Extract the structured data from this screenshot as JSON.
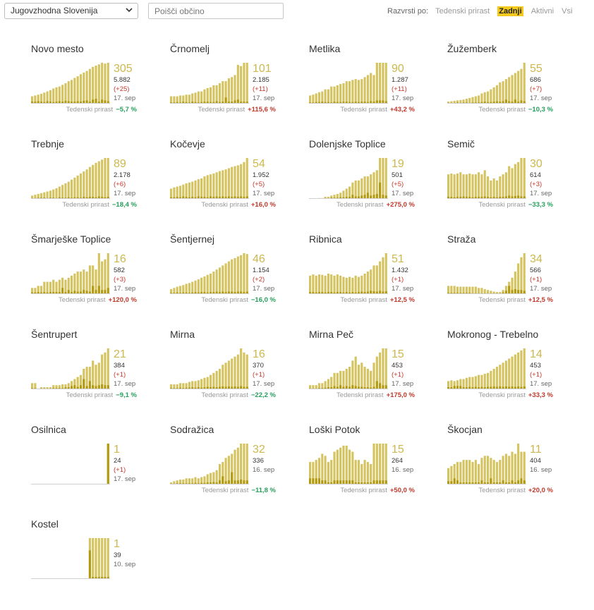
{
  "header": {
    "region": "Jugovzhodna Slovenija",
    "search_placeholder": "Poišči občino",
    "sort_label": "Razvrsti po:",
    "sort_options": [
      "Tedenski prirast",
      "Zadnji",
      "Aktivni",
      "Vsi"
    ],
    "sort_active": "Zadnji"
  },
  "colors": {
    "bar_light": "#d4c35f",
    "bar_dark": "#b39a0c",
    "up": "#c0392b",
    "down": "#27a05c"
  },
  "growth_label": "Tedenski prirast",
  "municipalities": [
    {
      "name": "Novo mesto",
      "value": "305",
      "total": "5.882",
      "delta": "(+25)",
      "date": "17. sep",
      "growth": "−5,7 %",
      "trend": "down",
      "bars": [
        0.18,
        0.2,
        0.22,
        0.24,
        0.27,
        0.3,
        0.33,
        0.37,
        0.4,
        0.42,
        0.46,
        0.5,
        0.55,
        0.58,
        0.63,
        0.67,
        0.72,
        0.76,
        0.8,
        0.85,
        0.9,
        0.93,
        0.96,
        1.0,
        0.98,
        1.0
      ],
      "dark": [
        0.05,
        0.05,
        0.06,
        0.05,
        0.04,
        0.06,
        0.05,
        0.04,
        0.05,
        0.06,
        0.05,
        0.07,
        0.06,
        0.05,
        0.05,
        0.06,
        0.05,
        0.07,
        0.08,
        0.05,
        0.1,
        0.12,
        0.05,
        0.1,
        0.08,
        0.06
      ]
    },
    {
      "name": "Črnomelj",
      "value": "101",
      "total": "2.185",
      "delta": "(+11)",
      "date": "17. sep",
      "growth": "+115,6 %",
      "trend": "up",
      "bars": [
        0.18,
        0.18,
        0.18,
        0.2,
        0.2,
        0.22,
        0.22,
        0.25,
        0.27,
        0.3,
        0.3,
        0.35,
        0.38,
        0.4,
        0.45,
        0.45,
        0.5,
        0.55,
        0.55,
        0.62,
        0.65,
        0.7,
        0.95,
        0.92,
        1.0,
        1.0
      ],
      "dark": [
        0.03,
        0.03,
        0.04,
        0.03,
        0.05,
        0.04,
        0.03,
        0.05,
        0.04,
        0.03,
        0.04,
        0.05,
        0.05,
        0.04,
        0.04,
        0.06,
        0.04,
        0.05,
        0.15,
        0.05,
        0.05,
        0.08,
        0.1,
        0.05,
        0.05,
        0.05
      ]
    },
    {
      "name": "Metlika",
      "value": "90",
      "total": "1.287",
      "delta": "(+11)",
      "date": "17. sep",
      "growth": "+43,2 %",
      "trend": "up",
      "bars": [
        0.2,
        0.22,
        0.25,
        0.28,
        0.3,
        0.35,
        0.35,
        0.42,
        0.42,
        0.45,
        0.48,
        0.5,
        0.55,
        0.55,
        0.58,
        0.6,
        0.58,
        0.6,
        0.65,
        0.7,
        0.75,
        0.7,
        1.0,
        1.0,
        1.0,
        1.0
      ],
      "dark": [
        0.03,
        0.03,
        0.04,
        0.04,
        0.05,
        0.04,
        0.04,
        0.03,
        0.05,
        0.04,
        0.04,
        0.05,
        0.05,
        0.04,
        0.04,
        0.05,
        0.04,
        0.05,
        0.05,
        0.04,
        0.06,
        0.05,
        0.08,
        0.08,
        0.08,
        0.06
      ]
    },
    {
      "name": "Žužemberk",
      "value": "55",
      "total": "686",
      "delta": "(+7)",
      "date": "17. sep",
      "growth": "−10,3 %",
      "trend": "down",
      "bars": [
        0.05,
        0.06,
        0.07,
        0.08,
        0.09,
        0.1,
        0.12,
        0.14,
        0.16,
        0.18,
        0.2,
        0.25,
        0.28,
        0.3,
        0.35,
        0.4,
        0.45,
        0.52,
        0.55,
        0.6,
        0.65,
        0.7,
        0.75,
        0.8,
        0.85,
        1.0
      ],
      "dark": [
        0.02,
        0.02,
        0.02,
        0.03,
        0.02,
        0.03,
        0.03,
        0.02,
        0.03,
        0.03,
        0.03,
        0.04,
        0.05,
        0.04,
        0.04,
        0.05,
        0.06,
        0.05,
        0.06,
        0.1,
        0.06,
        0.05,
        0.1,
        0.05,
        0.08,
        0.06
      ]
    },
    {
      "name": "Trebnje",
      "value": "89",
      "total": "2.178",
      "delta": "(+6)",
      "date": "17. sep",
      "growth": "−18,4 %",
      "trend": "down",
      "bars": [
        0.08,
        0.1,
        0.12,
        0.14,
        0.16,
        0.18,
        0.2,
        0.23,
        0.26,
        0.3,
        0.34,
        0.38,
        0.42,
        0.47,
        0.52,
        0.57,
        0.62,
        0.67,
        0.72,
        0.78,
        0.83,
        0.88,
        0.92,
        0.96,
        1.0,
        1.0
      ],
      "dark": [
        0.02,
        0.02,
        0.03,
        0.03,
        0.03,
        0.02,
        0.03,
        0.03,
        0.02,
        0.04,
        0.03,
        0.03,
        0.04,
        0.03,
        0.04,
        0.04,
        0.03,
        0.05,
        0.04,
        0.05,
        0.05,
        0.04,
        0.06,
        0.05,
        0.04,
        0.05
      ]
    },
    {
      "name": "Kočevje",
      "value": "54",
      "total": "1.952",
      "delta": "(+5)",
      "date": "17. sep",
      "growth": "+16,0 %",
      "trend": "up",
      "bars": [
        0.25,
        0.28,
        0.3,
        0.32,
        0.35,
        0.38,
        0.4,
        0.42,
        0.45,
        0.48,
        0.5,
        0.55,
        0.58,
        0.6,
        0.62,
        0.65,
        0.68,
        0.7,
        0.72,
        0.75,
        0.78,
        0.8,
        0.82,
        0.85,
        0.9,
        1.0
      ],
      "dark": [
        0.04,
        0.04,
        0.05,
        0.04,
        0.06,
        0.05,
        0.04,
        0.05,
        0.04,
        0.06,
        0.05,
        0.05,
        0.04,
        0.06,
        0.05,
        0.06,
        0.05,
        0.06,
        0.05,
        0.06,
        0.05,
        0.06,
        0.05,
        0.06,
        0.05,
        0.06
      ]
    },
    {
      "name": "Dolenjske Toplice",
      "value": "19",
      "total": "501",
      "delta": "(+5)",
      "date": "17. sep",
      "growth": "+275,0 %",
      "trend": "up",
      "bars": [
        0,
        0,
        0,
        0.02,
        0.02,
        0.05,
        0.05,
        0.08,
        0.1,
        0.12,
        0.15,
        0.2,
        0.25,
        0.3,
        0.4,
        0.45,
        0.45,
        0.5,
        0.55,
        0.55,
        0.6,
        0.65,
        0.7,
        1.0,
        1.0,
        1.0
      ],
      "dark": [
        0,
        0,
        0,
        0,
        0,
        0.02,
        0.02,
        0.03,
        0.03,
        0.03,
        0.04,
        0.04,
        0.05,
        0.05,
        0.1,
        0.06,
        0.06,
        0.08,
        0.1,
        0.15,
        0.08,
        0.1,
        0.12,
        0.4,
        0.1,
        0.08
      ]
    },
    {
      "name": "Semič",
      "value": "30",
      "total": "614",
      "delta": "(+3)",
      "date": "17. sep",
      "growth": "−33,3 %",
      "trend": "down",
      "bars": [
        0.6,
        0.62,
        0.6,
        0.62,
        0.65,
        0.6,
        0.6,
        0.62,
        0.6,
        0.6,
        0.65,
        0.6,
        0.7,
        0.55,
        0.45,
        0.5,
        0.45,
        0.55,
        0.6,
        0.65,
        0.8,
        0.75,
        0.85,
        0.9,
        1.0,
        1.0
      ],
      "dark": [
        0.05,
        0.05,
        0.04,
        0.05,
        0.05,
        0.06,
        0.05,
        0.05,
        0.04,
        0.05,
        0.05,
        0.05,
        0.06,
        0.05,
        0.04,
        0.05,
        0.04,
        0.05,
        0.05,
        0.06,
        0.08,
        0.06,
        0.07,
        0.08,
        0.06,
        0.06
      ]
    },
    {
      "name": "Šmarješke Toplice",
      "value": "16",
      "total": "582",
      "delta": "(+3)",
      "date": "17. sep",
      "growth": "+120,0 %",
      "trend": "up",
      "bars": [
        0.15,
        0.15,
        0.2,
        0.2,
        0.3,
        0.3,
        0.3,
        0.35,
        0.3,
        0.35,
        0.4,
        0.35,
        0.4,
        0.45,
        0.5,
        0.55,
        0.55,
        0.6,
        0.55,
        0.7,
        0.7,
        0.6,
        1.0,
        0.8,
        0.85,
        1.0
      ],
      "dark": [
        0.04,
        0.04,
        0.05,
        0.04,
        0.05,
        0.04,
        0.05,
        0.05,
        0.05,
        0.05,
        0.15,
        0.05,
        0.1,
        0.05,
        0.08,
        0.06,
        0.06,
        0.1,
        0.08,
        0.06,
        0.2,
        0.1,
        0.2,
        0.1,
        0.1,
        0.15
      ]
    },
    {
      "name": "Šentjernej",
      "value": "46",
      "total": "1.154",
      "delta": "(+2)",
      "date": "17. sep",
      "growth": "−16,0 %",
      "trend": "down",
      "bars": [
        0.12,
        0.15,
        0.18,
        0.2,
        0.22,
        0.25,
        0.27,
        0.3,
        0.33,
        0.36,
        0.4,
        0.43,
        0.47,
        0.5,
        0.55,
        0.6,
        0.65,
        0.7,
        0.75,
        0.8,
        0.85,
        0.88,
        0.92,
        0.95,
        1.0,
        0.98
      ],
      "dark": [
        0.03,
        0.03,
        0.04,
        0.03,
        0.04,
        0.04,
        0.03,
        0.04,
        0.05,
        0.04,
        0.05,
        0.05,
        0.04,
        0.05,
        0.05,
        0.06,
        0.05,
        0.06,
        0.05,
        0.06,
        0.06,
        0.05,
        0.06,
        0.06,
        0.05,
        0.06
      ]
    },
    {
      "name": "Ribnica",
      "value": "51",
      "total": "1.432",
      "delta": "(+1)",
      "date": "17. sep",
      "growth": "+12,5 %",
      "trend": "up",
      "bars": [
        0.45,
        0.48,
        0.45,
        0.48,
        0.47,
        0.45,
        0.5,
        0.48,
        0.45,
        0.48,
        0.45,
        0.42,
        0.4,
        0.42,
        0.4,
        0.45,
        0.42,
        0.45,
        0.5,
        0.55,
        0.6,
        0.7,
        0.7,
        0.8,
        0.9,
        1.0
      ],
      "dark": [
        0.05,
        0.05,
        0.04,
        0.05,
        0.05,
        0.04,
        0.05,
        0.05,
        0.04,
        0.05,
        0.05,
        0.04,
        0.05,
        0.04,
        0.05,
        0.04,
        0.05,
        0.06,
        0.05,
        0.06,
        0.08,
        0.07,
        0.06,
        0.08,
        0.06,
        0.07
      ]
    },
    {
      "name": "Straža",
      "value": "34",
      "total": "566",
      "delta": "(+1)",
      "date": "17. sep",
      "growth": "+12,5 %",
      "trend": "up",
      "bars": [
        0.2,
        0.2,
        0.2,
        0.18,
        0.18,
        0.18,
        0.18,
        0.18,
        0.18,
        0.18,
        0.15,
        0.15,
        0.12,
        0.1,
        0.08,
        0.06,
        0.05,
        0.05,
        0.1,
        0.2,
        0.3,
        0.4,
        0.55,
        0.75,
        0.9,
        1.0
      ],
      "dark": [
        0.03,
        0.03,
        0.03,
        0.03,
        0.03,
        0.03,
        0.03,
        0.03,
        0.02,
        0.02,
        0.02,
        0.02,
        0.02,
        0.02,
        0.02,
        0.02,
        0.02,
        0.02,
        0.04,
        0.08,
        0.2,
        0.1,
        0.12,
        0.1,
        0.1,
        0.08
      ]
    },
    {
      "name": "Šentrupert",
      "value": "21",
      "total": "384",
      "delta": "(+1)",
      "date": "17. sep",
      "growth": "−9,1 %",
      "trend": "down",
      "bars": [
        0.15,
        0.15,
        0,
        0.05,
        0.05,
        0.05,
        0.05,
        0.1,
        0.1,
        0.1,
        0.12,
        0.12,
        0.15,
        0.2,
        0.25,
        0.3,
        0.35,
        0.5,
        0.55,
        0.55,
        0.7,
        0.6,
        0.65,
        0.85,
        0.9,
        1.0
      ],
      "dark": [
        0.03,
        0.03,
        0,
        0.02,
        0.02,
        0.02,
        0.02,
        0.03,
        0.03,
        0.03,
        0.03,
        0.05,
        0.05,
        0.08,
        0.1,
        0.06,
        0.1,
        0.25,
        0.08,
        0.2,
        0.1,
        0.08,
        0.1,
        0.12,
        0.1,
        0.1
      ]
    },
    {
      "name": "Mirna",
      "value": "16",
      "total": "370",
      "delta": "(+1)",
      "date": "17. sep",
      "growth": "−22,2 %",
      "trend": "down",
      "bars": [
        0.12,
        0.12,
        0.12,
        0.15,
        0.15,
        0.15,
        0.18,
        0.2,
        0.2,
        0.22,
        0.25,
        0.28,
        0.3,
        0.35,
        0.4,
        0.45,
        0.5,
        0.6,
        0.65,
        0.7,
        0.75,
        0.8,
        0.85,
        1.0,
        0.9,
        0.85
      ],
      "dark": [
        0.03,
        0.03,
        0.03,
        0.04,
        0.03,
        0.04,
        0.04,
        0.05,
        0.04,
        0.05,
        0.04,
        0.05,
        0.06,
        0.05,
        0.06,
        0.05,
        0.06,
        0.07,
        0.06,
        0.07,
        0.06,
        0.07,
        0.06,
        0.08,
        0.06,
        0.06
      ]
    },
    {
      "name": "Mirna Peč",
      "value": "15",
      "total": "453",
      "delta": "(+1)",
      "date": "17. sep",
      "growth": "+175,0 %",
      "trend": "up",
      "bars": [
        0.1,
        0.1,
        0.1,
        0.15,
        0.15,
        0.2,
        0.25,
        0.3,
        0.4,
        0.4,
        0.45,
        0.45,
        0.5,
        0.55,
        0.7,
        0.8,
        0.6,
        0.65,
        0.55,
        0.5,
        0.45,
        0.65,
        0.8,
        0.9,
        1.0,
        1.0
      ],
      "dark": [
        0.02,
        0.02,
        0.02,
        0.03,
        0.03,
        0.04,
        0.05,
        0.05,
        0.08,
        0.06,
        0.1,
        0.06,
        0.08,
        0.06,
        0.1,
        0.08,
        0.06,
        0.06,
        0.05,
        0.05,
        0.04,
        0.06,
        0.2,
        0.15,
        0.1,
        0.1
      ]
    },
    {
      "name": "Mokronog - Trebelno",
      "value": "14",
      "total": "453",
      "delta": "(+1)",
      "date": "17. sep",
      "growth": "+33,3 %",
      "trend": "up",
      "bars": [
        0.2,
        0.22,
        0.2,
        0.22,
        0.25,
        0.25,
        0.28,
        0.3,
        0.3,
        0.32,
        0.35,
        0.35,
        0.38,
        0.4,
        0.45,
        0.5,
        0.55,
        0.6,
        0.65,
        0.7,
        0.75,
        0.8,
        0.85,
        0.9,
        0.95,
        1.0
      ],
      "dark": [
        0.05,
        0.05,
        0.08,
        0.08,
        0.08,
        0.05,
        0.05,
        0.06,
        0.05,
        0.06,
        0.05,
        0.06,
        0.05,
        0.06,
        0.06,
        0.07,
        0.06,
        0.07,
        0.06,
        0.07,
        0.06,
        0.07,
        0.06,
        0.07,
        0.06,
        0.07
      ]
    },
    {
      "name": "Osilnica",
      "value": "1",
      "total": "24",
      "delta": "(+1)",
      "date": "17. sep",
      "growth": "",
      "trend": "none",
      "bars": [
        0,
        0,
        0,
        0,
        0,
        0,
        0,
        0,
        0,
        0,
        0,
        0,
        0,
        0,
        0,
        0,
        0,
        0,
        0,
        0,
        0,
        0,
        0,
        0,
        0,
        1.0
      ],
      "dark": [
        0,
        0,
        0,
        0,
        0,
        0,
        0,
        0,
        0,
        0,
        0,
        0,
        0,
        0,
        0,
        0,
        0,
        0,
        0,
        0,
        0,
        0,
        0,
        0,
        0,
        1.0
      ]
    },
    {
      "name": "Sodražica",
      "value": "32",
      "total": "336",
      "delta": "",
      "date": "16. sep",
      "growth": "−11,8 %",
      "trend": "down",
      "bars": [
        0.05,
        0.08,
        0.1,
        0.12,
        0.12,
        0.15,
        0.15,
        0.15,
        0.18,
        0.15,
        0.18,
        0.2,
        0.25,
        0.28,
        0.3,
        0.35,
        0.5,
        0.55,
        0.65,
        0.7,
        0.75,
        0.85,
        0.9,
        1.0,
        1.0,
        1.0
      ],
      "dark": [
        0.02,
        0.02,
        0.03,
        0.03,
        0.03,
        0.03,
        0.03,
        0.03,
        0.04,
        0.03,
        0.04,
        0.04,
        0.05,
        0.05,
        0.06,
        0.05,
        0.1,
        0.2,
        0.08,
        0.1,
        0.3,
        0.1,
        0.1,
        0.12,
        0.1,
        0.1
      ]
    },
    {
      "name": "Loški Potok",
      "value": "15",
      "total": "264",
      "delta": "",
      "date": "16. sep",
      "growth": "+50,0 %",
      "trend": "up",
      "bars": [
        0.55,
        0.55,
        0.6,
        0.65,
        0.75,
        0.7,
        0.55,
        0.6,
        0.8,
        0.85,
        0.9,
        0.95,
        0.95,
        0.85,
        0.8,
        0.6,
        0.6,
        0.5,
        0.6,
        0.55,
        0.5,
        1.0,
        1.0,
        1.0,
        1.0,
        1.0
      ],
      "dark": [
        0.15,
        0.15,
        0.15,
        0.15,
        0.1,
        0.1,
        0.05,
        0.05,
        0.1,
        0.1,
        0.1,
        0.1,
        0.1,
        0.1,
        0.1,
        0.05,
        0.05,
        0.05,
        0.05,
        0.05,
        0.05,
        0.1,
        0.1,
        0.1,
        0.1,
        0.1
      ]
    },
    {
      "name": "Škocjan",
      "value": "11",
      "total": "404",
      "delta": "",
      "date": "16. sep",
      "growth": "+20,0 %",
      "trend": "up",
      "bars": [
        0.4,
        0.45,
        0.5,
        0.55,
        0.55,
        0.6,
        0.6,
        0.6,
        0.55,
        0.6,
        0.5,
        0.65,
        0.7,
        0.7,
        0.65,
        0.6,
        0.55,
        0.6,
        0.7,
        0.75,
        0.7,
        0.8,
        0.75,
        1.0,
        0.8,
        0.8
      ],
      "dark": [
        0.08,
        0.08,
        0.15,
        0.1,
        0.05,
        0.05,
        0.05,
        0.05,
        0.05,
        0.05,
        0.05,
        0.1,
        0.05,
        0.05,
        0.15,
        0.05,
        0.05,
        0.05,
        0.1,
        0.05,
        0.05,
        0.1,
        0.05,
        0.1,
        0.15,
        0.1
      ]
    },
    {
      "name": "Kostel",
      "value": "1",
      "total": "39",
      "delta": "",
      "date": "10. sep",
      "growth": "",
      "trend": "none",
      "bars": [
        0,
        0,
        0,
        0,
        0,
        0,
        0,
        0,
        0,
        0,
        0,
        0,
        0,
        0,
        0,
        0,
        0,
        0,
        0,
        1.0,
        1.0,
        1.0,
        1.0,
        1.0,
        1.0,
        1.0
      ],
      "dark": [
        0,
        0,
        0,
        0,
        0,
        0,
        0,
        0,
        0,
        0,
        0,
        0,
        0,
        0,
        0,
        0,
        0,
        0,
        0,
        0.7,
        0.05,
        0.05,
        0.05,
        0.05,
        0.05,
        0.05
      ]
    }
  ]
}
